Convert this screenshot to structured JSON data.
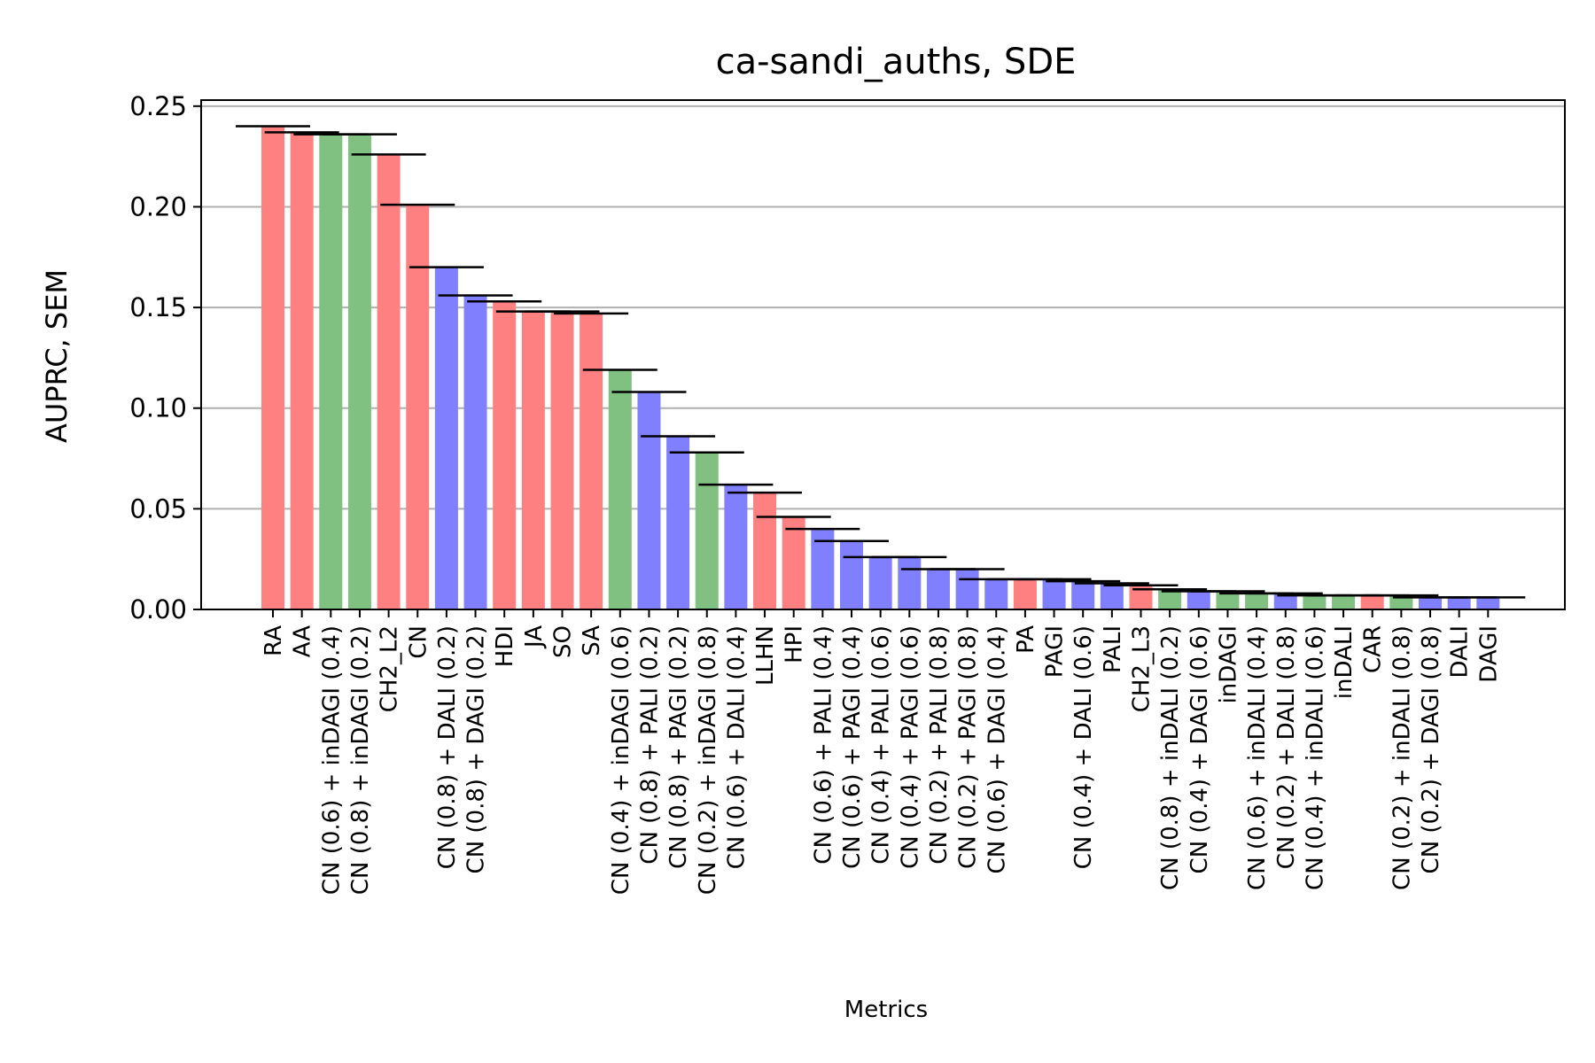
{
  "chart_data": {
    "type": "bar",
    "title": "ca-sandi_auths, SDE",
    "xlabel": "Metrics",
    "ylabel": "AUPRC, SEM",
    "ylim": [
      0,
      0.253
    ],
    "yticks": [
      "0.00",
      "0.05",
      "0.10",
      "0.15",
      "0.20",
      "0.25"
    ],
    "ytick_values": [
      0,
      0.05,
      0.1,
      0.15,
      0.2,
      0.25
    ],
    "grid": "horizontal",
    "colors": {
      "red": "#ff8080",
      "green": "#80c080",
      "blue": "#8080ff",
      "error": "#000000",
      "grid": "#b0b0b0"
    },
    "categories": [
      "RA",
      "AA",
      "CN (0.6) + inDAGI (0.4)",
      "CN (0.8) + inDAGI (0.2)",
      "CH2_L2",
      "CN",
      "CN (0.8) + DALI (0.2)",
      "CN (0.8) + DAGI (0.2)",
      "HDI",
      "JA",
      "SO",
      "SA",
      "CN (0.4) + inDAGI (0.6)",
      "CN (0.8) + PALI (0.2)",
      "CN (0.8) + PAGI (0.2)",
      "CN (0.2) + inDAGI (0.8)",
      "CN (0.6) + DALI (0.4)",
      "LLHN",
      "HPI",
      "CN (0.6) + PALI (0.4)",
      "CN (0.6) + PAGI (0.4)",
      "CN (0.4) + PALI (0.6)",
      "CN (0.4) + PAGI (0.6)",
      "CN (0.2) + PALI (0.8)",
      "CN (0.2) + PAGI (0.8)",
      "CN (0.6) + DAGI (0.4)",
      "PA",
      "PAGI",
      "CN (0.4) + DALI (0.6)",
      "PALI",
      "CH2_L3",
      "CN (0.8) + inDALI (0.2)",
      "CN (0.4) + DAGI (0.6)",
      "inDAGI",
      "CN (0.6) + inDALI (0.4)",
      "CN (0.2) + DALI (0.8)",
      "CN (0.4) + inDALI (0.6)",
      "inDALI",
      "CAR",
      "CN (0.2) + inDALI (0.8)",
      "CN (0.2) + DAGI (0.8)",
      "DALI",
      "DAGI"
    ],
    "values": [
      0.24,
      0.237,
      0.236,
      0.236,
      0.226,
      0.201,
      0.17,
      0.156,
      0.153,
      0.148,
      0.148,
      0.147,
      0.119,
      0.108,
      0.086,
      0.078,
      0.062,
      0.058,
      0.046,
      0.04,
      0.034,
      0.026,
      0.026,
      0.02,
      0.02,
      0.015,
      0.015,
      0.015,
      0.014,
      0.013,
      0.012,
      0.01,
      0.009,
      0.009,
      0.008,
      0.008,
      0.007,
      0.007,
      0.007,
      0.007,
      0.006,
      0.006,
      0.006
    ],
    "bar_colors": [
      "red",
      "red",
      "green",
      "green",
      "red",
      "red",
      "blue",
      "blue",
      "red",
      "red",
      "red",
      "red",
      "green",
      "blue",
      "blue",
      "green",
      "blue",
      "red",
      "red",
      "blue",
      "blue",
      "blue",
      "blue",
      "blue",
      "blue",
      "blue",
      "red",
      "blue",
      "blue",
      "blue",
      "red",
      "green",
      "blue",
      "green",
      "green",
      "blue",
      "green",
      "green",
      "red",
      "green",
      "blue",
      "blue",
      "blue"
    ]
  }
}
